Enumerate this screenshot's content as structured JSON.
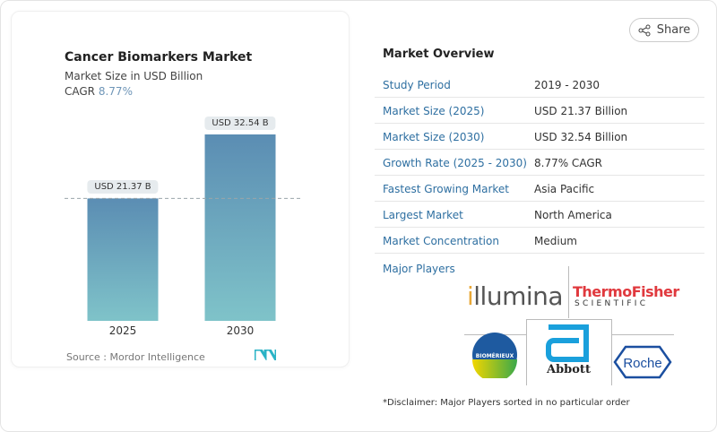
{
  "chart_data": {
    "type": "bar",
    "title": "Cancer Biomarkers Market",
    "subtitle": "Market Size in USD Billion",
    "cagr_label": "CAGR",
    "cagr_value": "8.77%",
    "categories": [
      "2025",
      "2030"
    ],
    "values": [
      21.37,
      32.54
    ],
    "data_labels": [
      "USD 21.37 B",
      "USD 32.54 B"
    ],
    "source": "Source :  Mordor Intelligence",
    "bar_gradient": [
      "#5b8db3",
      "#7fc3c9"
    ],
    "grid": false
  },
  "share_label": "Share",
  "overview": {
    "title": "Market Overview",
    "rows": [
      {
        "label": "Study Period",
        "value": "2019 - 2030"
      },
      {
        "label": "Market Size (2025)",
        "value": "USD 21.37 Billion"
      },
      {
        "label": "Market Size (2030)",
        "value": "USD 32.54 Billion"
      },
      {
        "label": "Growth Rate (2025 - 2030)",
        "value": "8.77% CAGR"
      },
      {
        "label": "Fastest Growing Market",
        "value": "Asia Pacific"
      },
      {
        "label": "Largest Market",
        "value": "North America"
      },
      {
        "label": "Market Concentration",
        "value": "Medium"
      }
    ],
    "major_players_label": "Major Players",
    "players": [
      "illumina",
      "ThermoFisher",
      "SCIENTIFIC",
      "BIOMÉRIEUX",
      "Abbott",
      "Roche"
    ],
    "disclaimer": "*Disclaimer: Major Players sorted in no particular order"
  }
}
